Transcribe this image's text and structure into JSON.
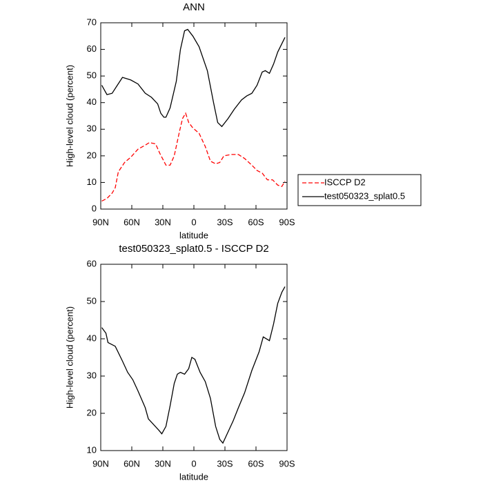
{
  "chart_data": [
    {
      "type": "line",
      "title": "ANN",
      "xlabel": "latitude",
      "ylabel": "High-level cloud (percent)",
      "xlim": [
        90,
        -90
      ],
      "xticks": [
        {
          "value": 90,
          "label": "90N"
        },
        {
          "value": 60,
          "label": "60N"
        },
        {
          "value": 30,
          "label": "30N"
        },
        0,
        {
          "value": -30,
          "label": "30S"
        },
        {
          "value": -60,
          "label": "60S"
        },
        {
          "value": -90,
          "label": "90S"
        }
      ],
      "ylim": [
        0,
        70
      ],
      "yticks": [
        0,
        10,
        20,
        30,
        40,
        50,
        60,
        70
      ],
      "legend": "right",
      "series": [
        {
          "name": "ISCCP D2",
          "color": "#ff0000",
          "dash": true,
          "x": [
            89,
            84,
            79,
            76,
            73,
            67,
            61,
            54,
            47,
            43,
            37,
            33,
            27,
            23,
            19,
            14,
            11,
            8,
            5,
            1,
            -5,
            -11,
            -16,
            -21,
            -25,
            -29,
            -36,
            -43,
            -49,
            -56,
            -61,
            -66,
            -71,
            -76,
            -81,
            -85,
            -88
          ],
          "values": [
            3,
            4,
            6,
            8,
            14,
            17.5,
            19.5,
            22.5,
            24,
            25,
            24.5,
            21,
            16.5,
            16.5,
            20,
            29,
            34,
            36,
            32.5,
            30.5,
            28.5,
            23.5,
            18,
            17,
            17.5,
            20,
            20.5,
            20.5,
            19,
            16.5,
            14.5,
            13.5,
            11,
            11,
            9,
            8.5,
            10.5
          ]
        },
        {
          "name": "test050323_splat0.5",
          "color": "#000000",
          "dash": false,
          "x": [
            89,
            84,
            79,
            74,
            69,
            65,
            61,
            54,
            47,
            41,
            35,
            32,
            29,
            27,
            23,
            17,
            13,
            9,
            6,
            1,
            -5,
            -13,
            -19,
            -23,
            -27,
            -33,
            -39,
            -46,
            -51,
            -56,
            -61,
            -66,
            -69,
            -73,
            -77,
            -81,
            -88
          ],
          "values": [
            46.5,
            43,
            43.5,
            46.5,
            49.5,
            49,
            48.5,
            47,
            43.5,
            42,
            39.5,
            36,
            34.5,
            34.5,
            38,
            48,
            60,
            67,
            67.5,
            65,
            61,
            52,
            40,
            32.5,
            31,
            34,
            37.5,
            41,
            42.5,
            43.5,
            46.5,
            51.5,
            52,
            51,
            54.5,
            59,
            64.5
          ]
        }
      ]
    },
    {
      "type": "line",
      "title": "test050323_splat0.5 - ISCCP D2",
      "xlabel": "latitude",
      "ylabel": "High-level cloud (percent)",
      "xlim": [
        90,
        -90
      ],
      "xticks": [
        {
          "value": 90,
          "label": "90N"
        },
        {
          "value": 60,
          "label": "60N"
        },
        {
          "value": 30,
          "label": "30N"
        },
        0,
        {
          "value": -30,
          "label": "30S"
        },
        {
          "value": -60,
          "label": "60S"
        },
        {
          "value": -90,
          "label": "90S"
        }
      ],
      "ylim": [
        10,
        60
      ],
      "yticks": [
        10,
        20,
        30,
        40,
        50,
        60
      ],
      "series": [
        {
          "color": "#000000",
          "dash": false,
          "x": [
            89,
            85,
            83,
            76,
            69,
            64,
            59,
            54,
            47,
            44,
            39,
            34,
            31,
            27,
            23,
            19,
            16,
            13,
            9,
            5,
            2,
            -1,
            -6,
            -11,
            -16,
            -21,
            -25,
            -28,
            -33,
            -38,
            -43,
            -49,
            -56,
            -63,
            -67,
            -73,
            -77,
            -81,
            -85,
            -88
          ],
          "values": [
            43,
            41.5,
            39,
            38,
            34,
            31,
            29,
            26,
            21.5,
            18.5,
            17,
            15.5,
            14.5,
            16.5,
            22,
            28,
            30.5,
            31,
            30.5,
            32,
            35,
            34.5,
            31,
            28.5,
            24,
            16.5,
            13,
            12,
            15,
            18,
            21.5,
            25.5,
            31.5,
            36.5,
            40.5,
            39.5,
            44,
            49.5,
            52.5,
            54
          ]
        }
      ]
    }
  ]
}
